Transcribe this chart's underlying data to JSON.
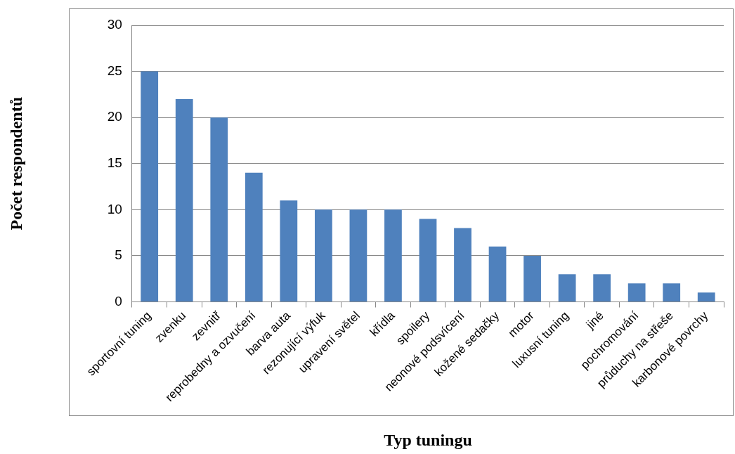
{
  "chart_data": {
    "type": "bar",
    "xlabel": "Typ tuningu",
    "ylabel": "Počet respondentů",
    "categories": [
      "sportovní tuning",
      "zvenku",
      "zevnitř",
      "reprobedny a ozvučení",
      "barva auta",
      "rezonující výfuk",
      "upravení světel",
      "křídla",
      "spoilery",
      "neonové podsvícení",
      "kožené sedačky",
      "motor",
      "luxusní tuning",
      "jiné",
      "pochromování",
      "průduchy na střeše",
      "karbonové povrchy"
    ],
    "values": [
      25,
      22,
      20,
      14,
      11,
      10,
      10,
      10,
      9,
      8,
      6,
      5,
      3,
      3,
      2,
      2,
      1
    ],
    "color": "#4f81bd",
    "ylim": [
      0,
      30
    ],
    "yticks": [
      0,
      5,
      10,
      15,
      20,
      25,
      30
    ],
    "grid": "y",
    "legend": false
  }
}
